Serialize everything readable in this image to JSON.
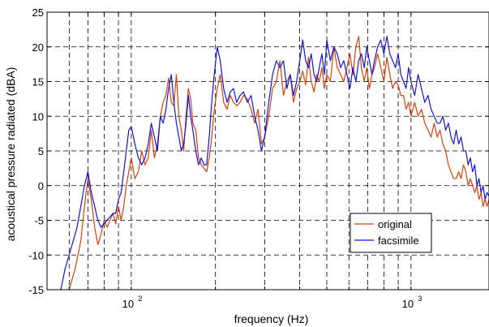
{
  "chart_data": {
    "type": "line",
    "title": "",
    "xlabel": "frequency (Hz)",
    "ylabel": "acoustical pressure radiated (dBA)",
    "xscale": "log",
    "xlim": [
      50,
      1900
    ],
    "ylim": [
      -15,
      25
    ],
    "grid": true,
    "legend_position": "lower-right",
    "y_ticks": [
      -15,
      -10,
      -5,
      0,
      5,
      10,
      15,
      20,
      25
    ],
    "x_tick_labels": [
      {
        "base": "10",
        "exp": "2",
        "value": 100
      },
      {
        "base": "10",
        "exp": "3",
        "value": 1000
      }
    ],
    "x_gridlines": [
      60,
      70,
      80,
      90,
      100,
      200,
      300,
      400,
      500,
      600,
      700,
      800,
      900,
      1000
    ],
    "series": [
      {
        "name": "original",
        "color": "#d4420e",
        "points": [
          [
            60,
            -15
          ],
          [
            63,
            -12
          ],
          [
            66,
            -8
          ],
          [
            68,
            -3
          ],
          [
            70,
            1
          ],
          [
            72,
            -2
          ],
          [
            74,
            -6
          ],
          [
            76,
            -8.5
          ],
          [
            78,
            -7
          ],
          [
            80,
            -5
          ],
          [
            82,
            -6
          ],
          [
            84,
            -5
          ],
          [
            86,
            -4
          ],
          [
            88,
            -5.5
          ],
          [
            90,
            -3
          ],
          [
            92,
            -5
          ],
          [
            94,
            -3
          ],
          [
            96,
            0
          ],
          [
            98,
            2
          ],
          [
            100,
            4
          ],
          [
            103,
            1
          ],
          [
            106,
            2
          ],
          [
            109,
            5
          ],
          [
            112,
            3
          ],
          [
            115,
            4
          ],
          [
            118,
            8
          ],
          [
            121,
            4
          ],
          [
            124,
            6
          ],
          [
            127,
            10
          ],
          [
            130,
            12
          ],
          [
            133,
            13
          ],
          [
            136,
            15.5
          ],
          [
            139,
            12
          ],
          [
            142,
            11.5
          ],
          [
            145,
            16
          ],
          [
            148,
            10
          ],
          [
            151,
            8
          ],
          [
            154,
            5
          ],
          [
            157,
            10
          ],
          [
            160,
            14
          ],
          [
            163,
            12.5
          ],
          [
            166,
            9
          ],
          [
            170,
            8
          ],
          [
            174,
            4
          ],
          [
            178,
            3
          ],
          [
            182,
            2.5
          ],
          [
            186,
            2
          ],
          [
            190,
            4
          ],
          [
            194,
            7
          ],
          [
            198,
            11
          ],
          [
            203,
            14
          ],
          [
            208,
            16
          ],
          [
            214,
            12
          ],
          [
            220,
            11
          ],
          [
            226,
            13
          ],
          [
            232,
            12
          ],
          [
            238,
            11.5
          ],
          [
            245,
            12
          ],
          [
            252,
            13
          ],
          [
            260,
            12.5
          ],
          [
            268,
            11
          ],
          [
            276,
            9
          ],
          [
            284,
            11
          ],
          [
            292,
            6
          ],
          [
            300,
            7
          ],
          [
            310,
            10
          ],
          [
            320,
            14
          ],
          [
            330,
            15
          ],
          [
            340,
            18
          ],
          [
            350,
            13
          ],
          [
            360,
            15
          ],
          [
            370,
            16
          ],
          [
            380,
            12
          ],
          [
            390,
            14
          ],
          [
            400,
            15
          ],
          [
            410,
            16.5
          ],
          [
            420,
            14.5
          ],
          [
            430,
            18.5
          ],
          [
            440,
            15
          ],
          [
            450,
            13.5
          ],
          [
            460,
            16
          ],
          [
            470,
            15
          ],
          [
            480,
            17
          ],
          [
            490,
            14
          ],
          [
            500,
            16
          ],
          [
            515,
            15
          ],
          [
            530,
            20
          ],
          [
            545,
            17
          ],
          [
            560,
            16
          ],
          [
            575,
            15
          ],
          [
            590,
            17
          ],
          [
            605,
            19
          ],
          [
            620,
            16
          ],
          [
            635,
            20
          ],
          [
            650,
            21.5
          ],
          [
            665,
            17
          ],
          [
            680,
            15
          ],
          [
            695,
            17
          ],
          [
            710,
            14
          ],
          [
            725,
            16
          ],
          [
            740,
            17
          ],
          [
            760,
            19
          ],
          [
            780,
            17
          ],
          [
            800,
            15
          ],
          [
            820,
            18.5
          ],
          [
            840,
            16
          ],
          [
            860,
            14
          ],
          [
            880,
            15
          ],
          [
            900,
            14.5
          ],
          [
            920,
            13
          ],
          [
            940,
            13
          ],
          [
            960,
            11
          ],
          [
            980,
            12
          ],
          [
            1000,
            10
          ],
          [
            1030,
            12
          ],
          [
            1060,
            10
          ],
          [
            1090,
            11
          ],
          [
            1120,
            9
          ],
          [
            1150,
            8
          ],
          [
            1180,
            7
          ],
          [
            1210,
            9
          ],
          [
            1240,
            7
          ],
          [
            1270,
            8
          ],
          [
            1300,
            6
          ],
          [
            1330,
            5
          ],
          [
            1360,
            3
          ],
          [
            1390,
            2
          ],
          [
            1420,
            1
          ],
          [
            1450,
            1
          ],
          [
            1480,
            2
          ],
          [
            1510,
            1
          ],
          [
            1540,
            3
          ],
          [
            1570,
            2
          ],
          [
            1600,
            0
          ],
          [
            1630,
            1
          ],
          [
            1660,
            0
          ],
          [
            1690,
            -1
          ],
          [
            1720,
            0
          ],
          [
            1750,
            -2
          ],
          [
            1780,
            -1
          ],
          [
            1810,
            -3
          ],
          [
            1840,
            -2
          ],
          [
            1870,
            -3
          ],
          [
            1900,
            -2
          ]
        ]
      },
      {
        "name": "facsimile",
        "color": "#1414d2",
        "points": [
          [
            56,
            -15
          ],
          [
            58,
            -12
          ],
          [
            60,
            -10
          ],
          [
            62,
            -8
          ],
          [
            64,
            -6
          ],
          [
            66,
            -3
          ],
          [
            68,
            0
          ],
          [
            70,
            2
          ],
          [
            72,
            -1
          ],
          [
            74,
            -3
          ],
          [
            76,
            -5
          ],
          [
            78,
            -6
          ],
          [
            80,
            -5.5
          ],
          [
            82,
            -5
          ],
          [
            84,
            -4.5
          ],
          [
            86,
            -4
          ],
          [
            88,
            -4
          ],
          [
            90,
            -2
          ],
          [
            92,
            -1
          ],
          [
            94,
            2
          ],
          [
            96,
            5
          ],
          [
            98,
            8
          ],
          [
            100,
            8.5
          ],
          [
            103,
            6
          ],
          [
            106,
            4
          ],
          [
            109,
            3
          ],
          [
            112,
            4
          ],
          [
            115,
            6
          ],
          [
            118,
            9
          ],
          [
            121,
            7
          ],
          [
            124,
            5
          ],
          [
            127,
            10
          ],
          [
            130,
            9
          ],
          [
            133,
            11
          ],
          [
            136,
            14
          ],
          [
            139,
            16
          ],
          [
            142,
            12
          ],
          [
            145,
            9
          ],
          [
            148,
            7
          ],
          [
            151,
            5
          ],
          [
            154,
            6
          ],
          [
            157,
            9
          ],
          [
            160,
            13
          ],
          [
            163,
            10
          ],
          [
            166,
            8
          ],
          [
            170,
            5
          ],
          [
            174,
            3
          ],
          [
            178,
            4
          ],
          [
            182,
            3
          ],
          [
            186,
            3
          ],
          [
            190,
            7
          ],
          [
            194,
            12
          ],
          [
            198,
            16
          ],
          [
            203,
            20
          ],
          [
            208,
            18
          ],
          [
            214,
            14
          ],
          [
            220,
            12
          ],
          [
            226,
            13.5
          ],
          [
            232,
            14
          ],
          [
            238,
            12
          ],
          [
            245,
            13
          ],
          [
            252,
            13.5
          ],
          [
            260,
            12
          ],
          [
            268,
            13
          ],
          [
            276,
            10
          ],
          [
            284,
            8
          ],
          [
            292,
            5
          ],
          [
            300,
            7
          ],
          [
            310,
            12
          ],
          [
            320,
            16
          ],
          [
            330,
            18
          ],
          [
            340,
            17
          ],
          [
            350,
            18
          ],
          [
            360,
            14
          ],
          [
            370,
            16
          ],
          [
            380,
            13
          ],
          [
            390,
            15
          ],
          [
            400,
            18
          ],
          [
            410,
            21
          ],
          [
            420,
            18
          ],
          [
            430,
            17
          ],
          [
            440,
            19
          ],
          [
            450,
            16
          ],
          [
            460,
            15
          ],
          [
            470,
            17
          ],
          [
            480,
            19
          ],
          [
            490,
            16
          ],
          [
            500,
            21
          ],
          [
            515,
            18
          ],
          [
            530,
            20
          ],
          [
            545,
            19
          ],
          [
            560,
            17
          ],
          [
            575,
            18
          ],
          [
            590,
            16
          ],
          [
            605,
            14
          ],
          [
            620,
            17
          ],
          [
            635,
            15
          ],
          [
            650,
            18
          ],
          [
            665,
            19
          ],
          [
            680,
            17
          ],
          [
            695,
            20
          ],
          [
            710,
            18
          ],
          [
            725,
            16
          ],
          [
            740,
            18
          ],
          [
            760,
            20
          ],
          [
            780,
            21
          ],
          [
            800,
            19
          ],
          [
            820,
            21.5
          ],
          [
            840,
            19
          ],
          [
            860,
            18
          ],
          [
            880,
            17
          ],
          [
            900,
            19
          ],
          [
            920,
            16
          ],
          [
            940,
            15
          ],
          [
            960,
            14
          ],
          [
            980,
            17
          ],
          [
            1000,
            15
          ],
          [
            1030,
            13
          ],
          [
            1060,
            16
          ],
          [
            1090,
            14
          ],
          [
            1120,
            12
          ],
          [
            1150,
            13
          ],
          [
            1180,
            11
          ],
          [
            1210,
            10
          ],
          [
            1240,
            9
          ],
          [
            1270,
            9
          ],
          [
            1300,
            10
          ],
          [
            1330,
            8
          ],
          [
            1360,
            9
          ],
          [
            1390,
            7
          ],
          [
            1420,
            6
          ],
          [
            1450,
            8
          ],
          [
            1480,
            6
          ],
          [
            1510,
            7
          ],
          [
            1540,
            5
          ],
          [
            1570,
            5
          ],
          [
            1600,
            3
          ],
          [
            1630,
            4
          ],
          [
            1660,
            2
          ],
          [
            1690,
            3
          ],
          [
            1720,
            0
          ],
          [
            1750,
            1
          ],
          [
            1780,
            -1
          ],
          [
            1810,
            0
          ],
          [
            1840,
            -2
          ],
          [
            1870,
            -1
          ],
          [
            1900,
            -1.5
          ]
        ]
      }
    ]
  }
}
